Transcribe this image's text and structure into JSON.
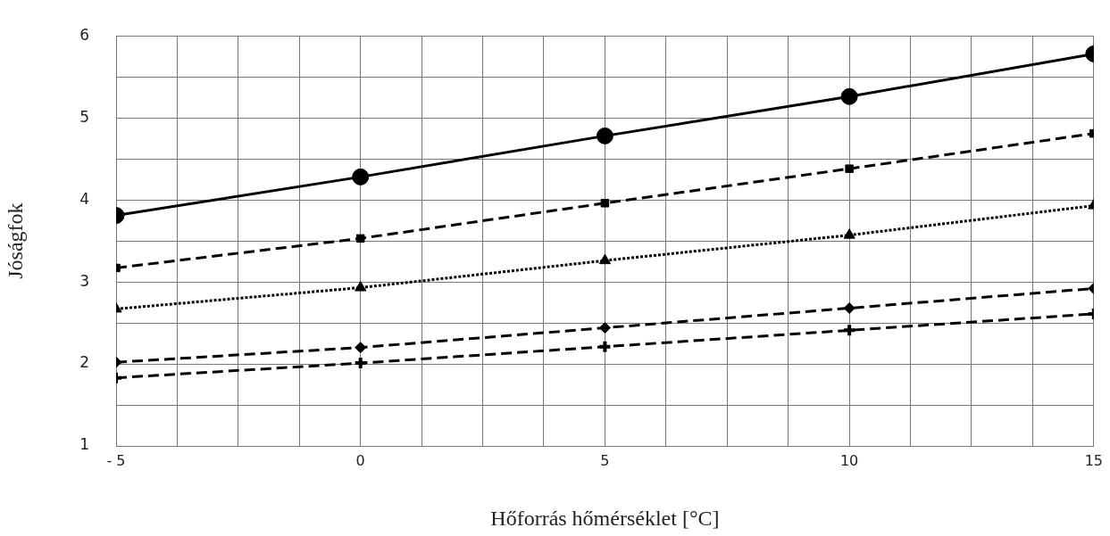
{
  "chart_data": {
    "type": "line",
    "xlabel": "Hőforrás hőmérséklet [°C]",
    "ylabel": "Jóságfok",
    "x": [
      -5,
      0,
      5,
      10,
      15
    ],
    "series": [
      {
        "color": "#000000",
        "marker": "circle",
        "line_style": "solid",
        "values": [
          3.81,
          4.28,
          4.78,
          5.26,
          5.78
        ]
      },
      {
        "color": "#000000",
        "marker": "square",
        "line_style": "dashed",
        "values": [
          3.17,
          3.53,
          3.96,
          4.38,
          4.81
        ]
      },
      {
        "color": "#000000",
        "marker": "triangle",
        "line_style": "dotted",
        "values": [
          2.67,
          2.93,
          3.26,
          3.57,
          3.93
        ]
      },
      {
        "color": "#000000",
        "marker": "diamond",
        "line_style": "dashed",
        "values": [
          2.02,
          2.2,
          2.44,
          2.68,
          2.92
        ]
      },
      {
        "color": "#000000",
        "marker": "cross",
        "line_style": "dashed",
        "values": [
          1.83,
          2.01,
          2.21,
          2.41,
          2.61
        ]
      }
    ],
    "xlim": [
      -5,
      15
    ],
    "xticks": [
      {
        "value": -5,
        "label": "- 5"
      },
      {
        "value": -3.75,
        "label": null
      },
      {
        "value": -2.5,
        "label": null
      },
      {
        "value": -1.25,
        "label": null
      },
      0,
      {
        "value": 1.25,
        "label": null
      },
      {
        "value": 2.5,
        "label": null
      },
      {
        "value": 3.75,
        "label": null
      },
      5,
      {
        "value": 6.25,
        "label": null
      },
      {
        "value": 7.5,
        "label": null
      },
      {
        "value": 8.75,
        "label": null
      },
      10,
      {
        "value": 11.25,
        "label": null
      },
      {
        "value": 12.5,
        "label": null
      },
      {
        "value": 13.75,
        "label": null
      },
      15
    ],
    "ylim": [
      1,
      6
    ],
    "yticks": [
      1,
      {
        "value": 1.5,
        "label": null
      },
      2,
      {
        "value": 2.5,
        "label": null
      },
      3,
      {
        "value": 3.5,
        "label": null
      },
      4,
      {
        "value": 4.5,
        "label": null
      },
      5,
      {
        "value": 5.5,
        "label": null
      },
      6
    ],
    "grid": true,
    "legend": false
  }
}
